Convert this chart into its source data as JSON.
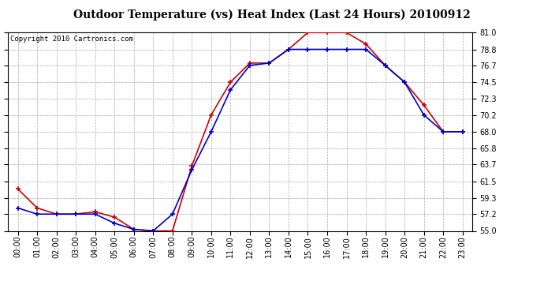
{
  "title": "Outdoor Temperature (vs) Heat Index (Last 24 Hours) 20100912",
  "copyright": "Copyright 2010 Cartronics.com",
  "hours": [
    "00:00",
    "01:00",
    "02:00",
    "03:00",
    "04:00",
    "05:00",
    "06:00",
    "07:00",
    "08:00",
    "09:00",
    "10:00",
    "11:00",
    "12:00",
    "13:00",
    "14:00",
    "15:00",
    "16:00",
    "17:00",
    "18:00",
    "19:00",
    "20:00",
    "21:00",
    "22:00",
    "23:00"
  ],
  "temp": [
    58.0,
    57.2,
    57.2,
    57.2,
    57.2,
    56.0,
    55.2,
    55.0,
    57.2,
    63.0,
    68.0,
    73.5,
    76.7,
    77.0,
    78.8,
    78.8,
    78.8,
    78.8,
    78.8,
    76.7,
    74.5,
    70.2,
    68.0,
    68.0
  ],
  "heat_index": [
    60.5,
    58.0,
    57.2,
    57.2,
    57.5,
    56.8,
    55.2,
    55.0,
    55.0,
    63.5,
    70.2,
    74.5,
    77.0,
    77.0,
    78.8,
    81.0,
    81.0,
    81.0,
    79.5,
    76.7,
    74.5,
    71.5,
    68.0,
    68.0
  ],
  "temp_color": "#0000cc",
  "heat_color": "#cc0000",
  "bg_color": "#ffffff",
  "plot_bg": "#ffffff",
  "grid_color": "#aaaaaa",
  "ylim": [
    55.0,
    81.0
  ],
  "yticks": [
    55.0,
    57.2,
    59.3,
    61.5,
    63.7,
    65.8,
    68.0,
    70.2,
    72.3,
    74.5,
    76.7,
    78.8,
    81.0
  ],
  "title_fontsize": 10,
  "copyright_fontsize": 6.5,
  "tick_fontsize": 7
}
